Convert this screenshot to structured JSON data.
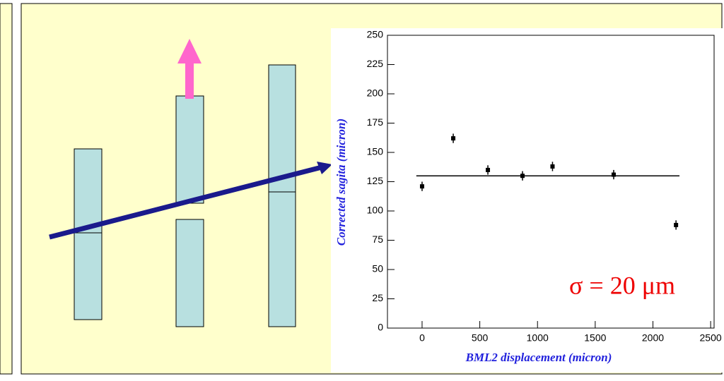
{
  "chart_data": {
    "type": "scatter",
    "x_label": "BML2 displacement (micron)",
    "y_label": "Corrected sagita (micron)",
    "annotation": "σ = 20 μm",
    "series": [
      {
        "x": [
          0,
          270,
          570,
          870,
          1130,
          1660,
          2200
        ],
        "values": [
          121,
          162,
          135,
          130,
          138,
          131,
          88
        ],
        "errors": [
          4,
          4,
          4,
          4,
          4,
          4,
          4
        ],
        "color": "#000000"
      }
    ],
    "fit": {
      "x": [
        -50,
        2230
      ],
      "values": [
        130,
        130
      ]
    },
    "xlim": [
      -300,
      2530
    ],
    "xticks": [
      0,
      500,
      1000,
      1500,
      2000,
      2500
    ],
    "ylim": [
      0,
      250
    ],
    "yticks": [
      0,
      25,
      50,
      75,
      100,
      125,
      150,
      175,
      200,
      225,
      250
    ]
  }
}
